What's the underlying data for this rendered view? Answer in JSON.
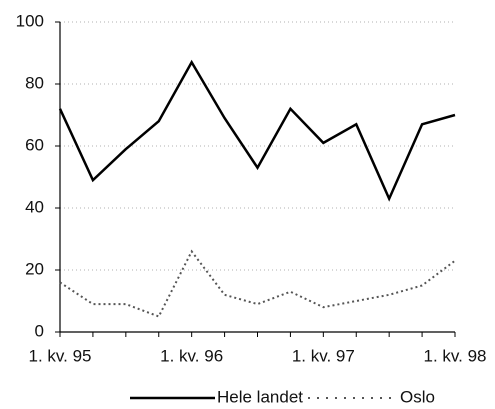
{
  "chart_data": {
    "type": "line",
    "categories": [
      "1. kv. 95",
      null,
      null,
      null,
      "1. kv. 96",
      null,
      null,
      null,
      "1. kv. 97",
      null,
      null,
      null,
      "1. kv. 98"
    ],
    "series": [
      {
        "name": "Hele landet",
        "color": "#000000",
        "style": "solid",
        "values": [
          72,
          49,
          59,
          68,
          87,
          69,
          53,
          72,
          61,
          67,
          43,
          67,
          70
        ]
      },
      {
        "name": "Oslo",
        "color": "#555555",
        "style": "dotted",
        "values": [
          16,
          9,
          9,
          5,
          26,
          12,
          9,
          13,
          8,
          10,
          12,
          15,
          23
        ]
      }
    ],
    "ylim": [
      0,
      100
    ],
    "yticks": [
      0,
      20,
      40,
      60,
      80,
      100
    ],
    "grid": true,
    "legend": "bottom"
  }
}
